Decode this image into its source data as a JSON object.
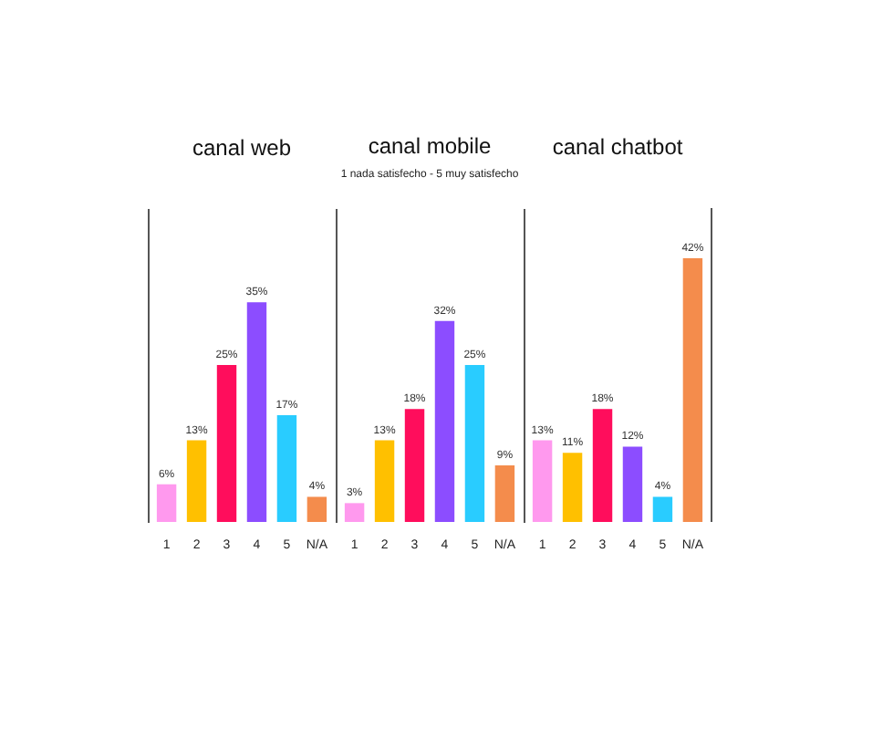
{
  "chart_data": [
    {
      "type": "bar",
      "title": "canal web",
      "categories": [
        "1",
        "2",
        "3",
        "4",
        "5",
        "N/A"
      ],
      "values": [
        6,
        13,
        25,
        35,
        17,
        4
      ],
      "colors": [
        "#ff99ee",
        "#ffc000",
        "#ff0d5c",
        "#8c4dff",
        "#29ccff",
        "#f48c4c"
      ],
      "ylim": [
        0,
        50
      ],
      "tick_labels": "x",
      "data_labels": true,
      "value_labels": [
        "6%",
        "13%",
        "25%",
        "35%",
        "17%",
        "4%"
      ]
    },
    {
      "type": "bar",
      "title": "canal mobile",
      "subtitle": "1 nada satisfecho - 5 muy satisfecho",
      "categories": [
        "1",
        "2",
        "3",
        "4",
        "5",
        "N/A"
      ],
      "values": [
        3,
        13,
        18,
        32,
        25,
        9
      ],
      "colors": [
        "#ff99ee",
        "#ffc000",
        "#ff0d5c",
        "#8c4dff",
        "#29ccff",
        "#f48c4c"
      ],
      "ylim": [
        0,
        50
      ],
      "tick_labels": "x",
      "data_labels": true,
      "value_labels": [
        "3%",
        "13%",
        "18%",
        "32%",
        "25%",
        "9%"
      ]
    },
    {
      "type": "bar",
      "title": "canal chatbot",
      "categories": [
        "1",
        "2",
        "3",
        "4",
        "5",
        "N/A"
      ],
      "values": [
        13,
        11,
        18,
        12,
        4,
        42
      ],
      "colors": [
        "#ff99ee",
        "#ffc000",
        "#ff0d5c",
        "#8c4dff",
        "#29ccff",
        "#f48c4c"
      ],
      "ylim": [
        0,
        50
      ],
      "tick_labels": "x",
      "data_labels": true,
      "value_labels": [
        "13%",
        "11%",
        "18%",
        "12%",
        "4%",
        "42%"
      ]
    }
  ]
}
